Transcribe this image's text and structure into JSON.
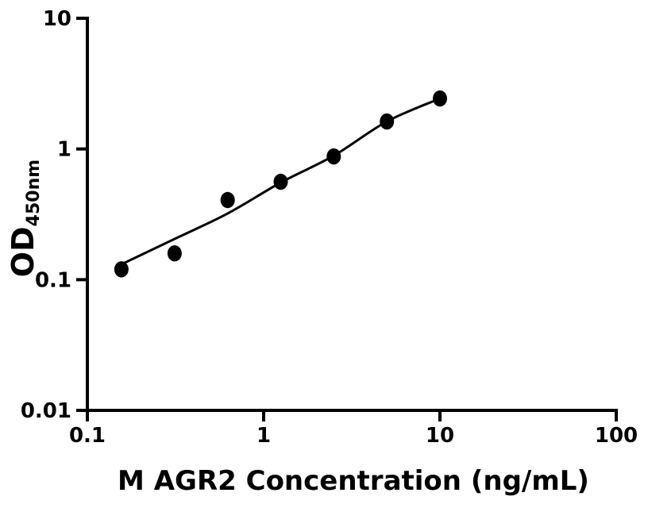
{
  "figure": {
    "background_color": "#ffffff",
    "foreground_color": "#000000"
  },
  "chart_data": {
    "type": "scatter",
    "title": "",
    "xlabel": "M AGR2 Concentration (ng/mL)",
    "ylabel": "OD",
    "ylabel_subscript": "450nm",
    "x_scale": "log",
    "y_scale": "log",
    "xlim": [
      0.1,
      100
    ],
    "ylim": [
      0.01,
      10
    ],
    "x_ticks": {
      "values": [
        0.1,
        1,
        10,
        100
      ],
      "labels": [
        "0.1",
        "1",
        "10",
        "100"
      ]
    },
    "y_ticks": {
      "values": [
        10,
        1,
        0.1,
        0.01
      ],
      "labels": [
        "10",
        "1",
        "0.1",
        "0.01"
      ]
    },
    "grid": false,
    "legend": false,
    "series": [
      {
        "name": "standard-points",
        "type": "scatter",
        "marker": "circle",
        "marker_color": "#000000",
        "points": [
          {
            "x": 0.156,
            "y": 0.12
          },
          {
            "x": 0.3125,
            "y": 0.159
          },
          {
            "x": 0.625,
            "y": 0.407
          },
          {
            "x": 1.25,
            "y": 0.561
          },
          {
            "x": 2.5,
            "y": 0.877
          },
          {
            "x": 5,
            "y": 1.622
          },
          {
            "x": 10,
            "y": 2.433
          }
        ]
      },
      {
        "name": "fit-curve",
        "type": "line",
        "line_color": "#000000",
        "points": [
          {
            "x": 0.156,
            "y": 0.131
          },
          {
            "x": 0.3125,
            "y": 0.205
          },
          {
            "x": 0.625,
            "y": 0.321
          },
          {
            "x": 1.25,
            "y": 0.553
          },
          {
            "x": 2.5,
            "y": 0.889
          },
          {
            "x": 5,
            "y": 1.622
          },
          {
            "x": 10,
            "y": 2.433
          }
        ]
      }
    ]
  }
}
